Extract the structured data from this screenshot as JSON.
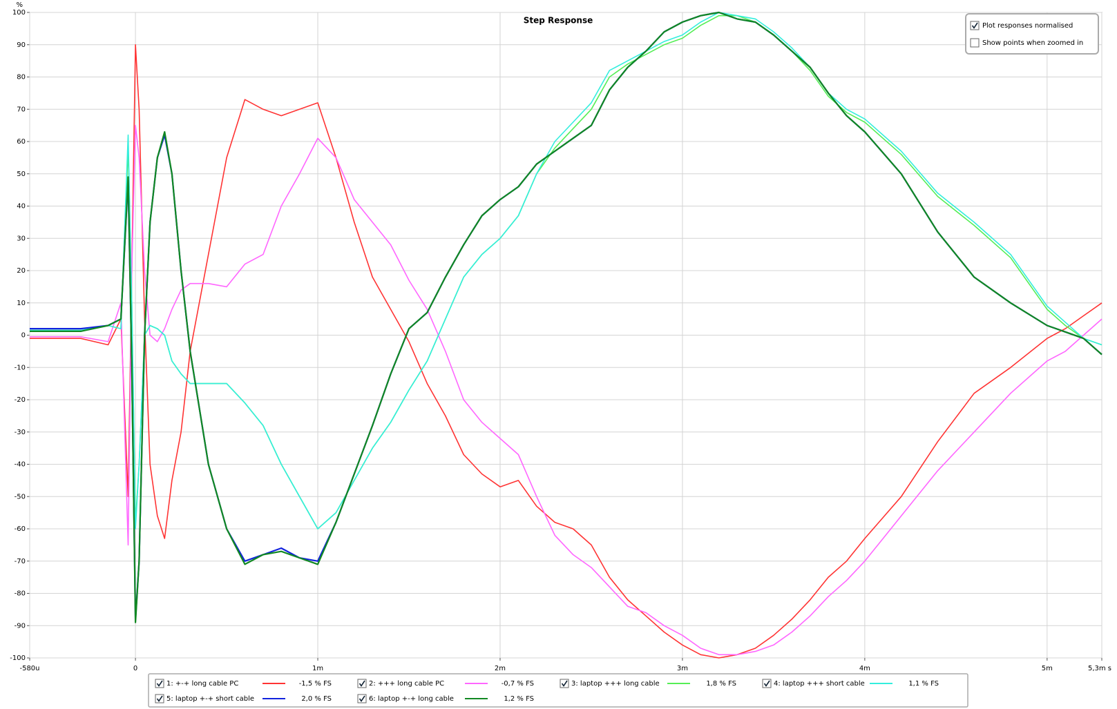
{
  "chart_data": {
    "type": "line",
    "title": "Step Response",
    "y_label": "%",
    "xlim": [
      -0.58,
      5.3
    ],
    "xticks": [
      {
        "value": -0.58,
        "label": "-580u"
      },
      0,
      {
        "value": 1,
        "label": "1m"
      },
      {
        "value": 2,
        "label": "2m"
      },
      {
        "value": 3,
        "label": "3m"
      },
      {
        "value": 4,
        "label": "4m"
      },
      {
        "value": 5,
        "label": "5m"
      },
      {
        "value": 5.3,
        "label": "5,3m s"
      }
    ],
    "ylim": [
      -100,
      100
    ],
    "yticks": [
      -100,
      -90,
      -80,
      -70,
      -60,
      -50,
      -40,
      -30,
      -20,
      -10,
      0,
      10,
      20,
      30,
      40,
      50,
      60,
      70,
      80,
      90,
      100
    ],
    "grid": true,
    "options": [
      {
        "label": "Plot responses normalised",
        "checked": true
      },
      {
        "label": "Show points when zoomed in",
        "checked": false
      }
    ],
    "x": [
      -0.58,
      -0.3,
      -0.15,
      -0.08,
      -0.04,
      -0.02,
      0,
      0.02,
      0.05,
      0.08,
      0.12,
      0.16,
      0.2,
      0.25,
      0.3,
      0.4,
      0.5,
      0.6,
      0.7,
      0.8,
      0.9,
      1.0,
      1.1,
      1.2,
      1.3,
      1.4,
      1.5,
      1.6,
      1.7,
      1.8,
      1.9,
      2.0,
      2.1,
      2.2,
      2.3,
      2.4,
      2.5,
      2.6,
      2.7,
      2.8,
      2.9,
      3.0,
      3.1,
      3.2,
      3.3,
      3.4,
      3.5,
      3.6,
      3.7,
      3.8,
      3.9,
      4.0,
      4.2,
      4.4,
      4.6,
      4.8,
      5.0,
      5.1,
      5.2,
      5.3
    ],
    "series": [
      {
        "name": "1: +-+ long cable PC",
        "fs_label": "-1,5 % FS",
        "checked": true,
        "color": "#ff3333",
        "values": [
          -1,
          -1,
          -3,
          5,
          -50,
          20,
          90,
          70,
          5,
          -40,
          -56,
          -63,
          -45,
          -30,
          -5,
          25,
          55,
          73,
          70,
          68,
          70,
          72,
          55,
          35,
          18,
          8,
          -2,
          -15,
          -25,
          -37,
          -43,
          -47,
          -45,
          -53,
          -58,
          -60,
          -65,
          -75,
          -82,
          -87,
          -92,
          -96,
          -99,
          -100,
          -99,
          -97,
          -93,
          -88,
          -82,
          -75,
          -70,
          -63,
          -50,
          -33,
          -18,
          -10,
          -1,
          2,
          6,
          10
        ]
      },
      {
        "name": "2: +++ long cable PC",
        "fs_label": "-0,7 % FS",
        "checked": true,
        "color": "#ff66ff",
        "values": [
          -0.5,
          -0.5,
          -2,
          10,
          -65,
          20,
          65,
          55,
          20,
          0,
          -2,
          2,
          8,
          14,
          16,
          16,
          15,
          22,
          25,
          40,
          50,
          61,
          55,
          42,
          35,
          28,
          17,
          8,
          -5,
          -20,
          -27,
          -32,
          -37,
          -50,
          -62,
          -68,
          -72,
          -78,
          -84,
          -86,
          -90,
          -93,
          -97,
          -99,
          -99,
          -98,
          -96,
          -92,
          -87,
          -81,
          -76,
          -70,
          -56,
          -42,
          -30,
          -18,
          -8,
          -5,
          0,
          5
        ]
      },
      {
        "name": "3: laptop +++ long cable",
        "fs_label": "1,8 % FS",
        "checked": true,
        "color": "#55ee55",
        "values": [
          1.5,
          1.5,
          3,
          2,
          58,
          10,
          -58,
          -40,
          0,
          3,
          2,
          0,
          -8,
          -12,
          -15,
          -15,
          -15,
          -21,
          -28,
          -40,
          -50,
          -60,
          -55,
          -45,
          -35,
          -27,
          -17,
          -8,
          5,
          18,
          25,
          30,
          37,
          50,
          58,
          64,
          70,
          80,
          84,
          87,
          90,
          92,
          96,
          99,
          99,
          97,
          93,
          88,
          82,
          74,
          69,
          66,
          56,
          43,
          34,
          24,
          8,
          3,
          -1,
          -3
        ]
      },
      {
        "name": "4: laptop +++ short cable",
        "fs_label": "1,1 % FS",
        "checked": true,
        "color": "#33eedd",
        "values": [
          1.5,
          1.5,
          3,
          2,
          62,
          10,
          -60,
          -40,
          0,
          3,
          2,
          0,
          -8,
          -12,
          -15,
          -15,
          -15,
          -21,
          -28,
          -40,
          -50,
          -60,
          -55,
          -45,
          -35,
          -27,
          -17,
          -8,
          5,
          18,
          25,
          30,
          37,
          50,
          60,
          66,
          72,
          82,
          85,
          88,
          91,
          93,
          97,
          100,
          99,
          98,
          94,
          89,
          83,
          75,
          70,
          67,
          57,
          44,
          35,
          25,
          9,
          4,
          -1,
          -3
        ]
      },
      {
        "name": "5: laptop +-+ short cable",
        "fs_label": "2,0 % FS",
        "checked": true,
        "color": "#1122dd",
        "values": [
          2,
          2,
          3,
          5,
          48,
          -10,
          -88,
          -70,
          0,
          35,
          55,
          62,
          50,
          20,
          -5,
          -40,
          -60,
          -70,
          -68,
          -66,
          -69,
          -70,
          -58,
          -43,
          -28,
          -12,
          2,
          7,
          18,
          28,
          37,
          42,
          46,
          53,
          57,
          61,
          65,
          76,
          83,
          88,
          94,
          97,
          99,
          100,
          98,
          97,
          93,
          88,
          83,
          75,
          68,
          63,
          50,
          32,
          18,
          10,
          3,
          1,
          -1,
          -6
        ]
      },
      {
        "name": "6: laptop +-+ long cable",
        "fs_label": "1,2 % FS",
        "checked": true,
        "color": "#118822",
        "values": [
          1.2,
          1.2,
          3,
          5,
          49,
          -10,
          -89,
          -70,
          0,
          35,
          55,
          63,
          50,
          20,
          -5,
          -40,
          -60,
          -71,
          -68,
          -67,
          -69,
          -71,
          -58,
          -43,
          -28,
          -12,
          2,
          7,
          18,
          28,
          37,
          42,
          46,
          53,
          57,
          61,
          65,
          76,
          83,
          88,
          94,
          97,
          99,
          100,
          98,
          97,
          93,
          88,
          83,
          75,
          68,
          63,
          50,
          32,
          18,
          10,
          3,
          1,
          -1,
          -6
        ]
      }
    ]
  }
}
